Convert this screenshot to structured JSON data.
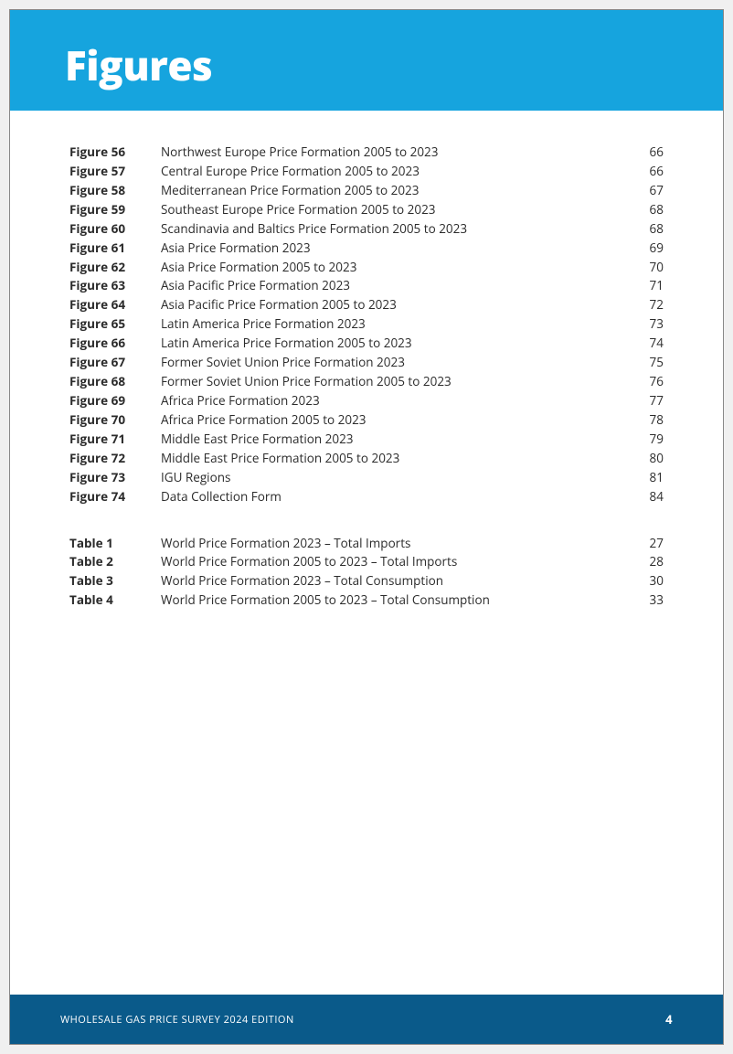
{
  "header": {
    "title": "Figures",
    "banner_color": "#16a4de",
    "title_color": "#ffffff"
  },
  "figures": [
    {
      "label": "Figure 56",
      "title": "Northwest Europe Price Formation 2005 to 2023",
      "page": "66"
    },
    {
      "label": "Figure 57",
      "title": "Central Europe Price Formation 2005 to 2023",
      "page": "66"
    },
    {
      "label": "Figure 58",
      "title": "Mediterranean Price Formation 2005 to 2023",
      "page": "67"
    },
    {
      "label": "Figure 59",
      "title": "Southeast Europe Price Formation 2005 to 2023",
      "page": "68"
    },
    {
      "label": "Figure 60",
      "title": "Scandinavia and Baltics Price Formation 2005 to 2023",
      "page": "68"
    },
    {
      "label": "Figure 61",
      "title": "Asia Price Formation 2023",
      "page": "69"
    },
    {
      "label": "Figure 62",
      "title": "Asia Price Formation 2005 to 2023",
      "page": "70"
    },
    {
      "label": "Figure 63",
      "title": "Asia Pacific Price Formation 2023",
      "page": "71"
    },
    {
      "label": "Figure 64",
      "title": "Asia Pacific Price Formation 2005 to 2023",
      "page": "72"
    },
    {
      "label": "Figure 65",
      "title": "Latin America Price Formation 2023",
      "page": "73"
    },
    {
      "label": "Figure 66",
      "title": "Latin America Price Formation 2005 to 2023",
      "page": "74"
    },
    {
      "label": "Figure 67",
      "title": "Former Soviet Union Price Formation 2023",
      "page": "75"
    },
    {
      "label": "Figure 68",
      "title": "Former Soviet Union Price Formation 2005 to 2023",
      "page": "76"
    },
    {
      "label": "Figure 69",
      "title": "Africa Price Formation 2023",
      "page": "77"
    },
    {
      "label": "Figure 70",
      "title": "Africa Price Formation 2005 to 2023",
      "page": "78"
    },
    {
      "label": "Figure 71",
      "title": "Middle East Price Formation 2023",
      "page": "79"
    },
    {
      "label": "Figure 72",
      "title": "Middle East Price Formation 2005 to 2023",
      "page": "80"
    },
    {
      "label": "Figure 73",
      "title": "IGU Regions",
      "page": "81"
    },
    {
      "label": "Figure 74",
      "title": "Data Collection Form",
      "page": "84"
    }
  ],
  "tables": [
    {
      "label": "Table 1",
      "title": "World Price Formation 2023 – Total Imports",
      "page": "27"
    },
    {
      "label": "Table 2",
      "title": "World Price Formation 2005 to 2023 – Total Imports",
      "page": "28"
    },
    {
      "label": "Table 3",
      "title": "World Price Formation 2023 – Total Consumption",
      "page": "30"
    },
    {
      "label": "Table 4",
      "title": "World Price Formation 2005 to 2023 – Total Consumption",
      "page": "33"
    }
  ],
  "footer": {
    "title": "WHOLESALE GAS PRICE SURVEY 2024 EDITION",
    "page_number": "4",
    "bar_color": "#0a5a8a"
  },
  "typography": {
    "body_font": "Segoe UI, Open Sans, Arial, sans-serif",
    "header_fontsize": 44,
    "row_fontsize": 13.5,
    "footer_fontsize": 11,
    "text_color": "#2b2b2b"
  }
}
